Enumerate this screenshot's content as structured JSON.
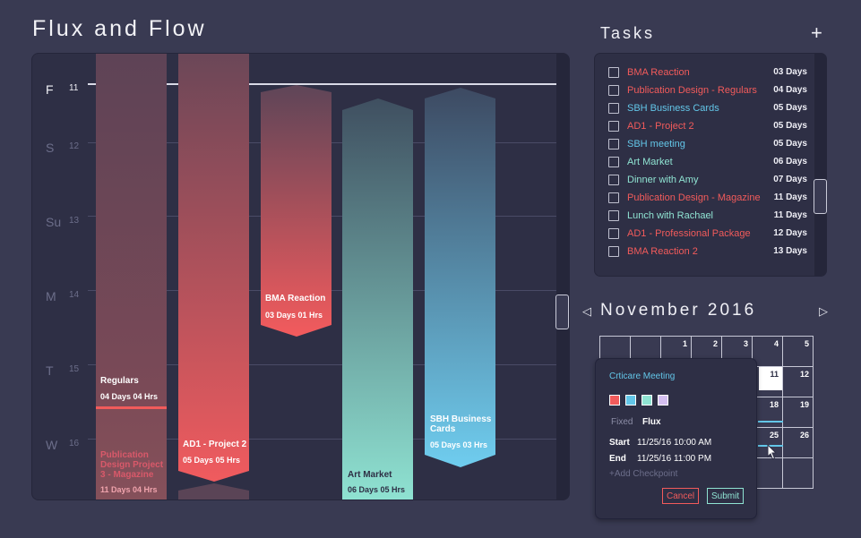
{
  "app": {
    "title": "Flux and Flow"
  },
  "colors": {
    "bg": "#393a52",
    "panel": "#2e2f45",
    "red": "#f25b5b",
    "blue": "#63c6e8",
    "teal": "#8fe3d2",
    "lavender": "#d4bff0"
  },
  "timeline": {
    "rows": [
      {
        "day": "F",
        "num": "11",
        "active": true
      },
      {
        "day": "S",
        "num": "12"
      },
      {
        "day": "Su",
        "num": "13"
      },
      {
        "day": "M",
        "num": "14"
      },
      {
        "day": "T",
        "num": "15"
      },
      {
        "day": "W",
        "num": "16"
      }
    ],
    "bars": [
      {
        "title": "Regulars",
        "duration": "04 Days 04 Hrs",
        "color": "red"
      },
      {
        "title": "Publication Design Project 3 - Magazine",
        "duration": "11 Days 04 Hrs",
        "color": "red"
      },
      {
        "title": "AD1 - Project 2",
        "duration": "05 Days 05 Hrs",
        "color": "red"
      },
      {
        "title": "BMA Reaction",
        "duration": "03 Days 01 Hrs",
        "color": "red"
      },
      {
        "title": "Art Market",
        "duration": "06 Days 05 Hrs",
        "color": "teal"
      },
      {
        "title": "SBH Business Cards",
        "duration": "05 Days 03 Hrs",
        "color": "blue"
      }
    ]
  },
  "tasks": {
    "title": "Tasks",
    "add_icon": "+",
    "items": [
      {
        "name": "BMA Reaction",
        "days": "03 Days",
        "color": "red"
      },
      {
        "name": "Publication Design - Regulars",
        "days": "04 Days",
        "color": "red"
      },
      {
        "name": "SBH Business Cards",
        "days": "05 Days",
        "color": "blue"
      },
      {
        "name": "AD1 - Project 2",
        "days": "05 Days",
        "color": "red"
      },
      {
        "name": "SBH meeting",
        "days": "05 Days",
        "color": "blue"
      },
      {
        "name": "Art Market",
        "days": "06 Days",
        "color": "teal"
      },
      {
        "name": "Dinner with Amy",
        "days": "07 Days",
        "color": "teal"
      },
      {
        "name": "Publication Design - Magazine",
        "days": "11 Days",
        "color": "red"
      },
      {
        "name": "Lunch with Rachael",
        "days": "11 Days",
        "color": "teal"
      },
      {
        "name": "AD1 - Professional Package",
        "days": "12 Days",
        "color": "red"
      },
      {
        "name": "BMA Reaction 2",
        "days": "13 Days",
        "color": "red"
      }
    ]
  },
  "calendar": {
    "month": "November 2016",
    "cells": [
      "",
      "",
      "1",
      "2",
      "3",
      "4",
      "5",
      "11",
      "12",
      "18",
      "19",
      "25",
      "26"
    ],
    "today": "11"
  },
  "popup": {
    "title": "Crticare Meeting",
    "swatches": [
      "#f25b5b",
      "#63c6e8",
      "#8fe3d2",
      "#d4bff0"
    ],
    "mode_fixed": "Fixed",
    "mode_flux": "Flux",
    "start_label": "Start",
    "start_value": "11/25/16 10:00 AM",
    "end_label": "End",
    "end_value": "11/25/16 11:00 PM",
    "add_checkpoint": "+Add Checkpoint",
    "cancel": "Cancel",
    "submit": "Submit"
  }
}
